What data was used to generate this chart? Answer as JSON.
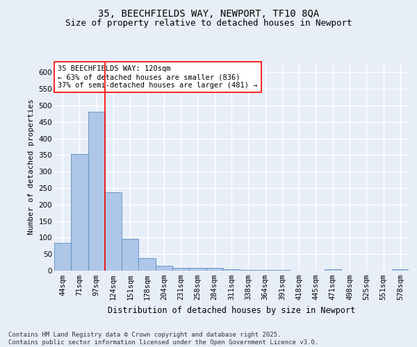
{
  "title": "35, BEECHFIELDS WAY, NEWPORT, TF10 8QA",
  "subtitle": "Size of property relative to detached houses in Newport",
  "xlabel": "Distribution of detached houses by size in Newport",
  "ylabel": "Number of detached properties",
  "categories": [
    "44sqm",
    "71sqm",
    "97sqm",
    "124sqm",
    "151sqm",
    "178sqm",
    "204sqm",
    "231sqm",
    "258sqm",
    "284sqm",
    "311sqm",
    "338sqm",
    "364sqm",
    "391sqm",
    "418sqm",
    "445sqm",
    "471sqm",
    "498sqm",
    "525sqm",
    "551sqm",
    "578sqm"
  ],
  "values": [
    85,
    352,
    480,
    237,
    96,
    37,
    15,
    8,
    8,
    8,
    4,
    3,
    2,
    2,
    1,
    1,
    5,
    1,
    1,
    1,
    5
  ],
  "bar_color": "#aec6e8",
  "bar_edgecolor": "#5a8fc0",
  "background_color": "#e8eef8",
  "grid_color": "#ffffff",
  "vline_x": 2.5,
  "vline_color": "red",
  "annotation_text": "35 BEECHFIELDS WAY: 120sqm\n← 63% of detached houses are smaller (836)\n37% of semi-detached houses are larger (481) →",
  "annotation_box_color": "white",
  "annotation_box_edgecolor": "red",
  "ylim": [
    0,
    630
  ],
  "yticks": [
    0,
    50,
    100,
    150,
    200,
    250,
    300,
    350,
    400,
    450,
    500,
    550,
    600
  ],
  "footer_text": "Contains HM Land Registry data © Crown copyright and database right 2025.\nContains public sector information licensed under the Open Government Licence v3.0.",
  "title_fontsize": 10,
  "subtitle_fontsize": 9,
  "xlabel_fontsize": 8.5,
  "ylabel_fontsize": 8,
  "tick_fontsize": 7.5,
  "annotation_fontsize": 7.5,
  "footer_fontsize": 6.5
}
